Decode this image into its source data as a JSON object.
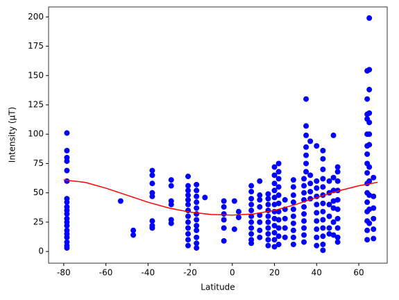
{
  "chart_data": {
    "type": "scatter",
    "xlabel": "Latitude",
    "ylabel": "Intensity (μT)",
    "xlim": [
      -87.2,
      73.5
    ],
    "ylim": [
      -10,
      208.5
    ],
    "xticks": [
      -80,
      -60,
      -40,
      -20,
      0,
      20,
      40,
      60
    ],
    "yticks": [
      0,
      25,
      50,
      75,
      100,
      125,
      150,
      175,
      200
    ],
    "grid": false,
    "series": [
      {
        "type": "scatter",
        "color": "#0000ff",
        "x": [
          -78.5,
          -78.5,
          -78.5,
          -78.5,
          -78.5,
          -78.5,
          -78.5,
          -78.5,
          -78.5,
          -78.5,
          -78.5,
          -78.5,
          -78.5,
          -78.5,
          -78.5,
          -78.5,
          -78.5,
          -78.5,
          -78.5,
          -78.5,
          -53,
          -47,
          -47,
          -38,
          -38,
          -38,
          -38,
          -38,
          -38,
          -38,
          -38,
          -29,
          -29,
          -29,
          -29,
          -29,
          -29,
          -21,
          -21,
          -21,
          -21,
          -21,
          -21,
          -21,
          -21,
          -21,
          -21,
          -21,
          -21,
          -21,
          -17,
          -17,
          -17,
          -17,
          -17,
          -17,
          -17,
          -17,
          -17,
          -17,
          -17,
          -17,
          -13,
          -4,
          -4,
          -4,
          -4,
          -4,
          -4,
          1,
          1,
          3,
          3,
          9,
          9,
          9,
          9,
          9,
          9,
          9,
          9,
          9,
          9,
          9,
          13,
          13,
          13,
          13,
          13,
          13,
          13,
          13,
          17,
          17,
          17,
          17,
          17,
          17,
          17,
          17,
          17,
          17,
          20,
          20,
          20,
          20,
          20,
          20,
          20,
          20,
          20,
          20,
          20,
          20,
          22,
          22,
          22,
          22,
          22,
          22,
          22,
          22,
          22,
          22,
          22,
          25,
          25,
          25,
          25,
          25,
          29,
          29,
          29,
          29,
          29,
          29,
          29,
          29,
          29,
          29,
          34,
          34,
          34,
          34,
          34,
          34,
          34,
          34,
          34,
          34,
          35,
          35,
          35,
          35,
          35,
          35,
          35,
          37,
          37,
          37,
          37,
          37,
          40,
          40,
          40,
          40,
          40,
          40,
          40,
          40,
          40,
          40,
          43,
          43,
          43,
          43,
          43,
          43,
          43,
          43,
          43,
          43,
          43,
          43,
          43,
          46,
          46,
          46,
          46,
          46,
          46,
          48,
          48,
          48,
          48,
          48,
          48,
          48,
          50,
          50,
          50,
          50,
          50,
          50,
          50,
          50,
          50,
          50,
          64,
          64,
          64,
          64,
          64,
          64,
          64,
          64,
          64,
          64,
          64,
          64,
          64,
          64,
          64,
          64,
          65,
          65,
          65,
          65,
          65,
          65,
          65,
          65,
          65,
          65,
          65,
          65,
          67,
          67,
          67,
          67,
          67,
          67
        ],
        "values": [
          101,
          86,
          80,
          77,
          69,
          60,
          45,
          42,
          38,
          35,
          32,
          28,
          25,
          22,
          18,
          15,
          12,
          8,
          5,
          3,
          43,
          18,
          14,
          69,
          65,
          58,
          50,
          47,
          26,
          22,
          20,
          61,
          56,
          43,
          40,
          27,
          24,
          64,
          56,
          52,
          48,
          44,
          40,
          35,
          30,
          25,
          20,
          15,
          10,
          5,
          57,
          52,
          47,
          42,
          37,
          32,
          27,
          22,
          18,
          12,
          7,
          3,
          46,
          43,
          38,
          32,
          27,
          20,
          9,
          43,
          19,
          34,
          29,
          56,
          51,
          45,
          40,
          35,
          30,
          25,
          20,
          15,
          10,
          7,
          60,
          48,
          44,
          38,
          31,
          25,
          18,
          12,
          49,
          45,
          40,
          35,
          30,
          25,
          20,
          15,
          10,
          5,
          72,
          65,
          58,
          52,
          46,
          40,
          34,
          28,
          22,
          16,
          10,
          4,
          75,
          68,
          62,
          55,
          48,
          41,
          34,
          27,
          20,
          13,
          6,
          44,
          36,
          28,
          20,
          12,
          61,
          55,
          48,
          42,
          36,
          30,
          24,
          18,
          12,
          6,
          62,
          56,
          50,
          44,
          38,
          32,
          26,
          20,
          14,
          8,
          130,
          107,
          99,
          89,
          82,
          75,
          68,
          94,
          65,
          58,
          51,
          45,
          90,
          60,
          54,
          47,
          40,
          33,
          26,
          19,
          12,
          5,
          86,
          79,
          70,
          62,
          55,
          48,
          41,
          34,
          27,
          20,
          13,
          6,
          1,
          60,
          50,
          40,
          30,
          20,
          15,
          99,
          63,
          52,
          43,
          37,
          25,
          14,
          72,
          68,
          60,
          52,
          44,
          36,
          28,
          20,
          12,
          8,
          154,
          130,
          117,
          113,
          100,
          90,
          83,
          75,
          67,
          58,
          50,
          42,
          34,
          26,
          18,
          10,
          199,
          155,
          138,
          118,
          110,
          100,
          91,
          72,
          60,
          48,
          36,
          24,
          63,
          47,
          37,
          28,
          19,
          11
        ]
      },
      {
        "type": "line",
        "color": "#ff0000",
        "x": [
          -80,
          -70,
          -60,
          -50,
          -40,
          -30,
          -20,
          -10,
          0,
          10,
          20,
          30,
          40,
          50,
          60,
          69
        ],
        "values": [
          61,
          59,
          54,
          48,
          42,
          37,
          33.5,
          31.5,
          31,
          32,
          35,
          40,
          46,
          51.5,
          56,
          59
        ]
      }
    ]
  }
}
